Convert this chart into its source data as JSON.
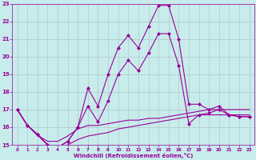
{
  "title": "",
  "xlabel": "Windchill (Refroidissement éolien,°C)",
  "ylabel": "",
  "bg_color": "#c8ecec",
  "grid_color": "#b0c8c8",
  "line_color": "#990099",
  "xlim": [
    -0.5,
    23.5
  ],
  "ylim": [
    15,
    23
  ],
  "yticks": [
    15,
    16,
    17,
    18,
    19,
    20,
    21,
    22,
    23
  ],
  "xticks": [
    0,
    1,
    2,
    3,
    4,
    5,
    6,
    7,
    8,
    9,
    10,
    11,
    12,
    13,
    14,
    15,
    16,
    17,
    18,
    19,
    20,
    21,
    22,
    23
  ],
  "line1_x": [
    0,
    1,
    2,
    3,
    4,
    5,
    6,
    7,
    8,
    9,
    10,
    11,
    12,
    13,
    14,
    15,
    16,
    17,
    18,
    19,
    20,
    21,
    22,
    23
  ],
  "line1_y": [
    17.0,
    16.1,
    15.6,
    15.0,
    14.85,
    15.2,
    16.0,
    18.2,
    17.2,
    19.0,
    20.5,
    21.2,
    20.5,
    21.7,
    22.9,
    22.9,
    21.0,
    17.3,
    17.3,
    17.0,
    17.2,
    16.7,
    16.6,
    16.6
  ],
  "line2_x": [
    0,
    1,
    2,
    3,
    4,
    5,
    6,
    7,
    8,
    9,
    10,
    11,
    12,
    13,
    14,
    15,
    16,
    17,
    18,
    19,
    20,
    21,
    22,
    23
  ],
  "line2_y": [
    17.0,
    16.1,
    15.6,
    15.0,
    14.85,
    15.2,
    16.0,
    17.2,
    16.3,
    17.5,
    19.0,
    19.8,
    19.2,
    20.2,
    21.3,
    21.3,
    19.5,
    16.2,
    16.7,
    16.8,
    17.0,
    16.7,
    16.6,
    16.6
  ],
  "line3_x": [
    0,
    1,
    2,
    3,
    4,
    5,
    6,
    7,
    8,
    9,
    10,
    11,
    12,
    13,
    14,
    15,
    16,
    17,
    18,
    19,
    20,
    21,
    22,
    23
  ],
  "line3_y": [
    17.0,
    16.1,
    15.55,
    15.2,
    15.2,
    15.5,
    15.9,
    16.1,
    16.1,
    16.2,
    16.3,
    16.4,
    16.4,
    16.5,
    16.5,
    16.6,
    16.7,
    16.8,
    16.9,
    17.0,
    17.0,
    17.0,
    17.0,
    17.0
  ],
  "line4_x": [
    0,
    1,
    2,
    3,
    4,
    5,
    6,
    7,
    8,
    9,
    10,
    11,
    12,
    13,
    14,
    15,
    16,
    17,
    18,
    19,
    20,
    21,
    22,
    23
  ],
  "line4_y": [
    17.0,
    16.1,
    15.55,
    15.0,
    14.85,
    15.0,
    15.3,
    15.5,
    15.6,
    15.7,
    15.9,
    16.0,
    16.1,
    16.2,
    16.3,
    16.4,
    16.5,
    16.6,
    16.7,
    16.7,
    16.7,
    16.7,
    16.7,
    16.7
  ]
}
